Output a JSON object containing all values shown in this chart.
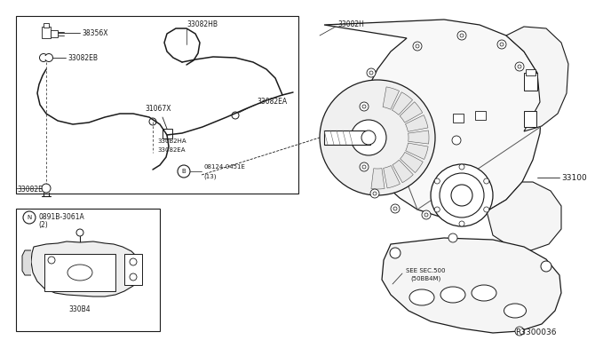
{
  "bg_color": "#ffffff",
  "line_color": "#1a1a1a",
  "gray_color": "#888888",
  "label_color": "#1a1a1a",
  "diagram_ref": "R3300036",
  "parts": {
    "main_assy": "33100",
    "hose_upper": "33082H",
    "hose_hb": "33082HB",
    "clip_eb": "33082EB",
    "clip_ea1": "33082EA",
    "clip_ea2": "33082EA",
    "clip_ha": "330B2HA",
    "clip_e": "33082E",
    "bracket": "31067X",
    "sensor": "38356X",
    "bolt": "08124-0451E",
    "bolt_qty": "(13)",
    "bracket2": "0891B-3061A",
    "bracket2_qty": "(2)",
    "tcm": "330B4",
    "mount_label": "SEE SEC.500",
    "mount_part": "(50BB4M)"
  },
  "font_size": 5.5,
  "font_size_sm": 5.0,
  "font_size_lg": 6.5
}
